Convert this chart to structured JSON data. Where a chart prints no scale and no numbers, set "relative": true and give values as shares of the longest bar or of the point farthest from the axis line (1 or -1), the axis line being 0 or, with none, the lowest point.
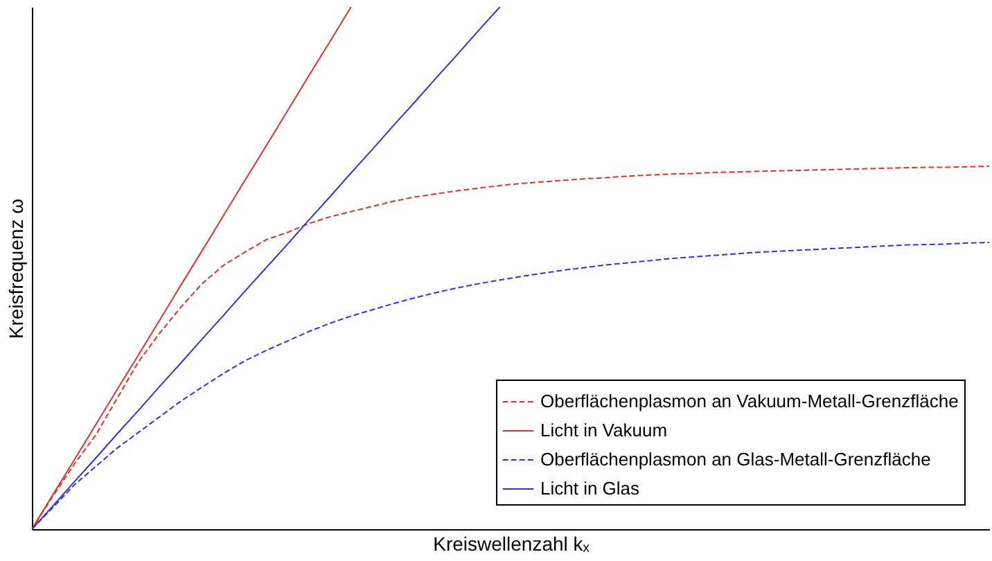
{
  "chart_data": {
    "type": "line",
    "relative": true,
    "xlabel": "Kreiswellenzahl kₓ",
    "ylabel": "Kreisfrequenz ω",
    "tick_labels": false,
    "grid": false,
    "legend": "bottom right",
    "marker": "none",
    "categories": [
      null,
      null,
      null,
      null,
      null,
      null,
      null,
      null,
      null,
      null,
      null,
      null,
      null,
      null,
      null,
      null,
      null,
      null,
      null,
      null,
      null,
      null,
      null,
      null,
      null,
      null,
      null,
      null,
      null,
      null,
      null,
      null,
      null,
      null,
      null,
      null,
      null,
      null,
      null,
      null,
      null,
      null,
      null,
      null,
      null,
      null
    ],
    "series": [
      {
        "name": "Oberflächenplasmon an Vakuum-Metall-Grenzfläche",
        "color": "#e03030",
        "line_style": "dashed",
        "values": [
          0,
          0.064,
          0.125,
          0.18,
          0.25,
          0.32,
          0.375,
          0.425,
          0.47,
          0.505,
          0.53,
          0.554,
          0.568,
          0.585,
          0.598,
          0.608,
          0.618,
          0.628,
          0.636,
          0.642,
          0.648,
          0.653,
          0.658,
          0.662,
          0.665,
          0.668,
          0.671,
          0.673,
          0.676,
          0.678,
          0.68,
          0.681,
          0.683,
          0.684,
          0.685,
          0.686,
          0.687,
          0.688,
          0.689,
          0.69,
          0.691,
          0.692,
          0.693,
          0.693,
          0.694,
          0.695
        ]
      },
      {
        "name": "Licht in Vakuum",
        "color": "#e03030",
        "line_style": "solid",
        "values": [
          0,
          0.067,
          0.133,
          0.2,
          0.267,
          0.333,
          0.4,
          0.467,
          0.533,
          0.6,
          0.667,
          0.733,
          0.8,
          0.867,
          0.933,
          1,
          null,
          null,
          null,
          null,
          null,
          null,
          null,
          null,
          null,
          null,
          null,
          null,
          null,
          null,
          null,
          null,
          null,
          null,
          null,
          null,
          null,
          null,
          null,
          null,
          null,
          null,
          null,
          null,
          null,
          null
        ]
      },
      {
        "name": "Oberflächenplasmon an Glas-Metall-Grenzfläche",
        "color": "#3030e0",
        "line_style": "dashed",
        "values": [
          0,
          0.042,
          0.085,
          0.12,
          0.155,
          0.185,
          0.215,
          0.245,
          0.272,
          0.298,
          0.322,
          0.342,
          0.36,
          0.378,
          0.394,
          0.408,
          0.42,
          0.432,
          0.443,
          0.453,
          0.462,
          0.47,
          0.477,
          0.484,
          0.49,
          0.496,
          0.501,
          0.506,
          0.51,
          0.514,
          0.518,
          0.521,
          0.524,
          0.527,
          0.53,
          0.532,
          0.534,
          0.536,
          0.538,
          0.54,
          0.542,
          0.544,
          0.545,
          0.546,
          0.548,
          0.549
        ]
      },
      {
        "name": "Licht in Glas",
        "color": "#3030e0",
        "line_style": "solid",
        "values": [
          0,
          0.045,
          0.091,
          0.136,
          0.182,
          0.227,
          0.273,
          0.318,
          0.364,
          0.409,
          0.455,
          0.5,
          0.545,
          0.591,
          0.636,
          0.682,
          0.727,
          0.773,
          0.818,
          0.864,
          0.909,
          0.955,
          1,
          null,
          null,
          null,
          null,
          null,
          null,
          null,
          null,
          null,
          null,
          null,
          null,
          null,
          null,
          null,
          null,
          null,
          null,
          null,
          null,
          null,
          null,
          null
        ]
      }
    ]
  }
}
